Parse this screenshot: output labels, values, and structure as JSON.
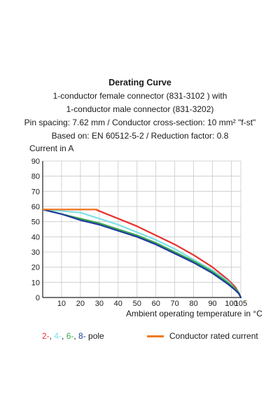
{
  "header": {
    "title": "Derating Curve",
    "lines": [
      "1-conductor female connector (831-3102 ) with",
      "1-conductor male connector (831-3202)",
      "Pin spacing: 7.62 mm / Conductor cross-section: 10 mm² \"f-st\"",
      "Based on: EN 60512-5-2 / Reduction factor: 0.8"
    ]
  },
  "legend": {
    "pole_items": [
      {
        "text": "2-",
        "color": "#e8322e"
      },
      {
        "text": "4-",
        "color": "#7fe0e6"
      },
      {
        "text": "6-",
        "color": "#3aa84a"
      },
      {
        "text": "8-",
        "color": "#1f3a9e"
      }
    ],
    "pole_suffix": " pole",
    "rated_label": "Conductor rated current",
    "rated_color": "#f07a1c"
  },
  "chart_data": {
    "type": "line",
    "xlabel": "Ambient operating temperature in °C",
    "ylabel": "Current in A",
    "xlim": [
      0,
      105
    ],
    "ylim": [
      0,
      90
    ],
    "xticks": [
      10,
      20,
      30,
      40,
      50,
      60,
      70,
      80,
      90,
      100,
      105
    ],
    "yticks": [
      0,
      10,
      20,
      30,
      40,
      50,
      60,
      70,
      80,
      90
    ],
    "grid": true,
    "series": [
      {
        "name": "Conductor rated current",
        "color": "#f07a1c",
        "x": [
          0,
          29
        ],
        "y": [
          58,
          58
        ]
      },
      {
        "name": "2-",
        "color": "#e8322e",
        "x": [
          0,
          28,
          40,
          50,
          60,
          70,
          80,
          90,
          98,
          102,
          104,
          105
        ],
        "y": [
          58,
          58,
          52,
          47,
          41,
          35,
          28,
          20,
          12,
          7,
          3,
          0
        ]
      },
      {
        "name": "4-",
        "color": "#7fe0e6",
        "x": [
          0,
          20,
          30,
          40,
          50,
          60,
          70,
          80,
          90,
          98,
          102,
          104,
          105
        ],
        "y": [
          58,
          56,
          52,
          48,
          43,
          38,
          32,
          25,
          18,
          11,
          6,
          3,
          0
        ]
      },
      {
        "name": "6-",
        "color": "#3aa84a",
        "x": [
          0,
          10,
          20,
          30,
          40,
          50,
          60,
          70,
          80,
          90,
          98,
          102,
          104,
          105
        ],
        "y": [
          58,
          55,
          52,
          49,
          45,
          41,
          36,
          30,
          24,
          17,
          10,
          6,
          3,
          0
        ]
      },
      {
        "name": "8-",
        "color": "#1f3a9e",
        "x": [
          0,
          10,
          20,
          30,
          40,
          50,
          60,
          70,
          80,
          90,
          98,
          102,
          104,
          105
        ],
        "y": [
          58,
          55,
          51,
          48,
          44,
          40,
          35,
          29,
          23,
          16,
          9,
          5,
          2.5,
          0
        ]
      }
    ]
  }
}
